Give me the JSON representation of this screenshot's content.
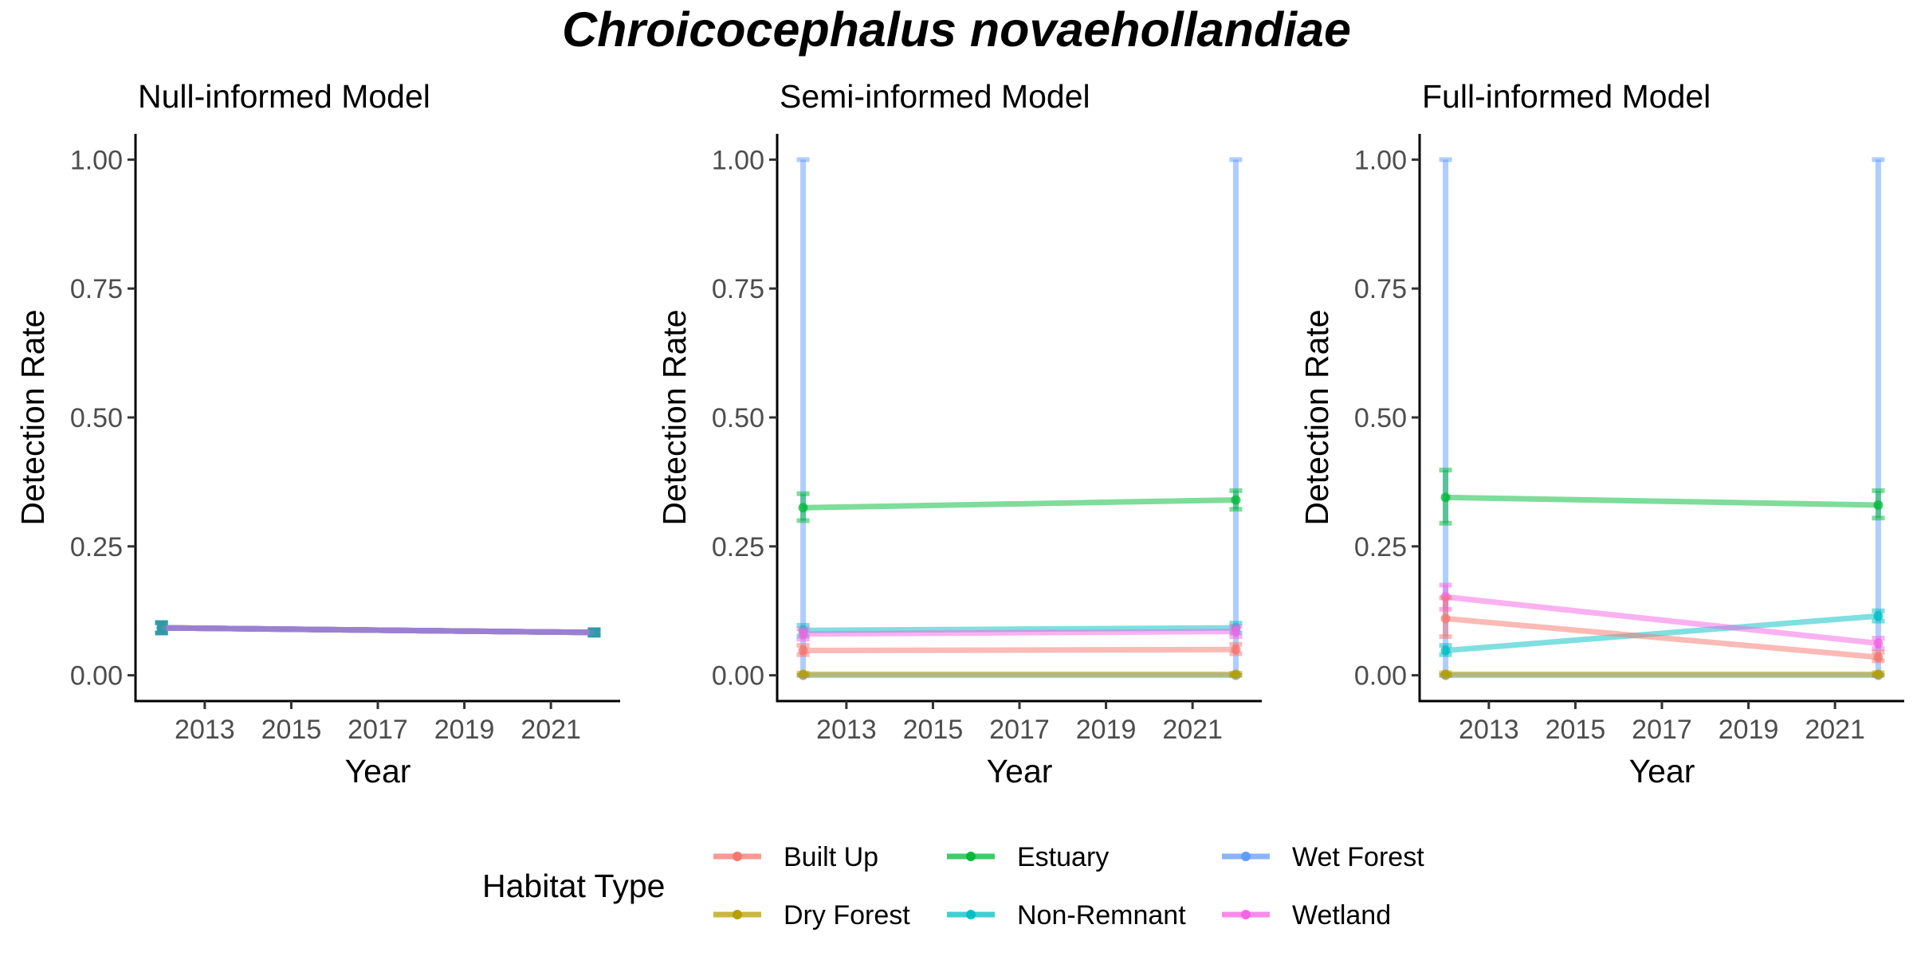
{
  "figure": {
    "title": "Chroicocephalus novaehollandiae"
  },
  "chart_data": [
    {
      "type": "line",
      "title": "Null-informed Model",
      "xlabel": "Year",
      "ylabel": "Detection Rate",
      "xlim": [
        2011.4,
        2022.6
      ],
      "ylim": [
        -0.05,
        1.05
      ],
      "x_ticks": [
        2013,
        2015,
        2017,
        2019,
        2021
      ],
      "y_ticks": [
        0,
        0.25,
        0.5,
        0.75,
        1
      ],
      "y_tick_labels": [
        "0.00",
        "0.25",
        "0.50",
        "0.75",
        "1.00"
      ],
      "grid": false,
      "series": [
        {
          "name": "Built Up",
          "x": [
            2012,
            2022
          ],
          "y": [
            0.092,
            0.083
          ],
          "ci_low": [
            0.082,
            0.078
          ],
          "ci_high": [
            0.102,
            0.088
          ]
        },
        {
          "name": "Dry Forest",
          "x": [
            2012,
            2022
          ],
          "y": [
            0.092,
            0.083
          ],
          "ci_low": [
            0.082,
            0.078
          ],
          "ci_high": [
            0.102,
            0.088
          ]
        },
        {
          "name": "Estuary",
          "x": [
            2012,
            2022
          ],
          "y": [
            0.092,
            0.083
          ],
          "ci_low": [
            0.082,
            0.078
          ],
          "ci_high": [
            0.102,
            0.088
          ]
        },
        {
          "name": "Non-Remnant",
          "x": [
            2012,
            2022
          ],
          "y": [
            0.092,
            0.083
          ],
          "ci_low": [
            0.082,
            0.078
          ],
          "ci_high": [
            0.102,
            0.088
          ]
        },
        {
          "name": "Wet Forest",
          "x": [
            2012,
            2022
          ],
          "y": [
            0.092,
            0.083
          ],
          "ci_low": [
            0.082,
            0.078
          ],
          "ci_high": [
            0.102,
            0.088
          ]
        },
        {
          "name": "Wetland",
          "x": [
            2012,
            2022
          ],
          "y": [
            0.092,
            0.083
          ],
          "ci_low": [
            0.082,
            0.078
          ],
          "ci_high": [
            0.102,
            0.088
          ]
        }
      ]
    },
    {
      "type": "line",
      "title": "Semi-informed Model",
      "xlabel": "Year",
      "ylabel": "Detection Rate",
      "xlim": [
        2011.4,
        2022.6
      ],
      "ylim": [
        -0.05,
        1.05
      ],
      "x_ticks": [
        2013,
        2015,
        2017,
        2019,
        2021
      ],
      "y_ticks": [
        0,
        0.25,
        0.5,
        0.75,
        1
      ],
      "y_tick_labels": [
        "0.00",
        "0.25",
        "0.50",
        "0.75",
        "1.00"
      ],
      "grid": false,
      "series": [
        {
          "name": "Built Up",
          "x": [
            2012,
            2022
          ],
          "y": [
            0.048,
            0.05
          ],
          "ci_low": [
            0.04,
            0.042
          ],
          "ci_high": [
            0.058,
            0.06
          ]
        },
        {
          "name": "Dry Forest",
          "x": [
            2012,
            2022
          ],
          "y": [
            0.002,
            0.002
          ],
          "ci_low": [
            0.0,
            0.0
          ],
          "ci_high": [
            0.004,
            0.004
          ]
        },
        {
          "name": "Estuary",
          "x": [
            2012,
            2022
          ],
          "y": [
            0.325,
            0.34
          ],
          "ci_low": [
            0.3,
            0.322
          ],
          "ci_high": [
            0.352,
            0.358
          ]
        },
        {
          "name": "Non-Remnant",
          "x": [
            2012,
            2022
          ],
          "y": [
            0.087,
            0.092
          ],
          "ci_low": [
            0.076,
            0.082
          ],
          "ci_high": [
            0.097,
            0.101
          ]
        },
        {
          "name": "Wet Forest",
          "x": [
            2012,
            2022
          ],
          "y": [
            0.0,
            0.0
          ],
          "ci_low": [
            0.0,
            0.0
          ],
          "ci_high": [
            1.0,
            1.0
          ]
        },
        {
          "name": "Wetland",
          "x": [
            2012,
            2022
          ],
          "y": [
            0.08,
            0.085
          ],
          "ci_low": [
            0.07,
            0.075
          ],
          "ci_high": [
            0.09,
            0.095
          ]
        }
      ]
    },
    {
      "type": "line",
      "title": "Full-informed Model",
      "xlabel": "Year",
      "ylabel": "Detection Rate",
      "xlim": [
        2011.4,
        2022.6
      ],
      "ylim": [
        -0.05,
        1.05
      ],
      "x_ticks": [
        2013,
        2015,
        2017,
        2019,
        2021
      ],
      "y_ticks": [
        0,
        0.25,
        0.5,
        0.75,
        1
      ],
      "y_tick_labels": [
        "0.00",
        "0.25",
        "0.50",
        "0.75",
        "1.00"
      ],
      "grid": false,
      "series": [
        {
          "name": "Built Up",
          "x": [
            2012,
            2022
          ],
          "y": [
            0.11,
            0.035
          ],
          "ci_low": [
            0.075,
            0.028
          ],
          "ci_high": [
            0.15,
            0.045
          ]
        },
        {
          "name": "Dry Forest",
          "x": [
            2012,
            2022
          ],
          "y": [
            0.002,
            0.002
          ],
          "ci_low": [
            0.0,
            0.0
          ],
          "ci_high": [
            0.005,
            0.005
          ]
        },
        {
          "name": "Estuary",
          "x": [
            2012,
            2022
          ],
          "y": [
            0.345,
            0.33
          ],
          "ci_low": [
            0.295,
            0.305
          ],
          "ci_high": [
            0.398,
            0.358
          ]
        },
        {
          "name": "Non-Remnant",
          "x": [
            2012,
            2022
          ],
          "y": [
            0.048,
            0.115
          ],
          "ci_low": [
            0.04,
            0.105
          ],
          "ci_high": [
            0.058,
            0.125
          ]
        },
        {
          "name": "Wet Forest",
          "x": [
            2012,
            2022
          ],
          "y": [
            0.0,
            0.0
          ],
          "ci_low": [
            0.0,
            0.0
          ],
          "ci_high": [
            1.0,
            1.0
          ]
        },
        {
          "name": "Wetland",
          "x": [
            2012,
            2022
          ],
          "y": [
            0.152,
            0.062
          ],
          "ci_low": [
            0.128,
            0.052
          ],
          "ci_high": [
            0.175,
            0.072
          ]
        }
      ]
    }
  ],
  "legend": {
    "title": "Habitat Type",
    "position": "bottom",
    "items": [
      {
        "label": "Built Up",
        "color": "#F8766D"
      },
      {
        "label": "Dry Forest",
        "color": "#B79F00"
      },
      {
        "label": "Estuary",
        "color": "#00BA38"
      },
      {
        "label": "Non-Remnant",
        "color": "#00BFC4"
      },
      {
        "label": "Wet Forest",
        "color": "#619CFF"
      },
      {
        "label": "Wetland",
        "color": "#F564E3"
      }
    ]
  },
  "colors": {
    "Built Up": "#F8766D",
    "Dry Forest": "#B79F00",
    "Estuary": "#00BA38",
    "Non-Remnant": "#00BFC4",
    "Wet Forest": "#619CFF",
    "Wetland": "#F564E3",
    "null_line": "#9B7FD0",
    "null_marker": "#2E9AA6"
  }
}
